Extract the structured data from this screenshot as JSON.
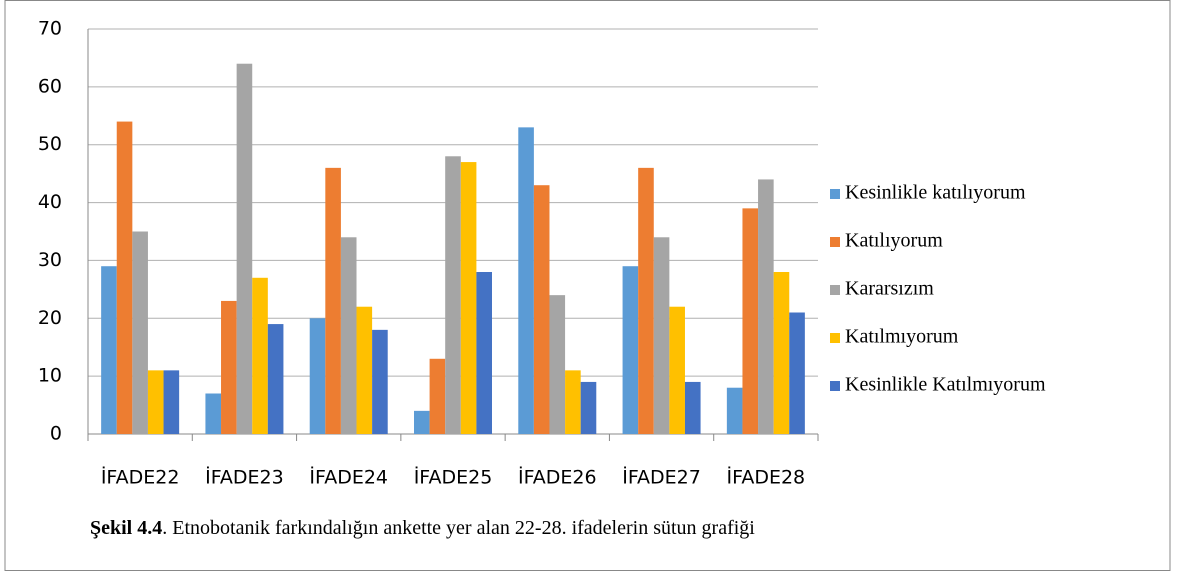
{
  "chart_data": {
    "type": "bar",
    "categories": [
      "İFADE22",
      "İFADE23",
      "İFADE24",
      "İFADE25",
      "İFADE26",
      "İFADE27",
      "İFADE28"
    ],
    "series": [
      {
        "name": "Kesinlikle katılıyorum",
        "color": "#5b9bd5",
        "values": [
          29,
          7,
          20,
          4,
          53,
          29,
          8
        ]
      },
      {
        "name": "Katılıyorum",
        "color": "#ed7d31",
        "values": [
          54,
          23,
          46,
          13,
          43,
          46,
          39
        ]
      },
      {
        "name": "Kararsızım",
        "color": "#a5a5a5",
        "values": [
          35,
          64,
          34,
          48,
          24,
          34,
          44
        ]
      },
      {
        "name": "Katılmıyorum",
        "color": "#ffc000",
        "values": [
          11,
          27,
          22,
          47,
          11,
          22,
          28
        ]
      },
      {
        "name": "Kesinlikle Katılmıyorum",
        "color": "#4472c4",
        "values": [
          11,
          19,
          18,
          28,
          9,
          9,
          21
        ]
      }
    ],
    "ylim": [
      0,
      70
    ],
    "yticks": [
      0,
      10,
      20,
      30,
      40,
      50,
      60,
      70
    ],
    "grid": true,
    "legend": "right",
    "caption": {
      "label": "Şekil 4.4",
      "text": ". Etnobotanik farkındalığın ankette yer alan 22-28. ifadelerin sütun grafiği"
    }
  }
}
